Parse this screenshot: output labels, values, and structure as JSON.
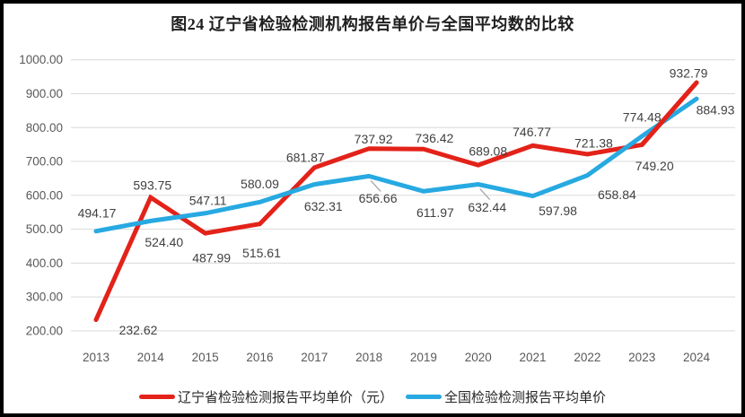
{
  "title": "图24 辽宁省检验检测机构报告单价与全国平均数的比较",
  "colors": {
    "liaoning_red": "#E32219",
    "national_blue": "#27A9E1",
    "gridline": "#D9D9D9",
    "axis_text": "#595959",
    "data_label_text": "#404040",
    "leader_line": "#A6A6A6",
    "frame_border": "#000000",
    "title_text": "#1F1F1F"
  },
  "legend": {
    "items": [
      {
        "label": "辽宁省检验检测报告平均单价（元）",
        "color": "#E32219"
      },
      {
        "label": "全国检验检测报告平均单价",
        "color": "#27A9E1"
      }
    ]
  },
  "chart_data": {
    "type": "line",
    "title": "图24 辽宁省检验检测机构报告单价与全国平均数的比较",
    "categories": [
      "2013",
      "2014",
      "2015",
      "2016",
      "2017",
      "2018",
      "2019",
      "2020",
      "2021",
      "2022",
      "2023",
      "2024"
    ],
    "series": [
      {
        "name": "辽宁省检验检测报告平均单价（元）",
        "color": "#E32219",
        "values": [
          232.62,
          593.75,
          487.99,
          515.61,
          681.87,
          737.92,
          736.42,
          689.08,
          746.77,
          721.38,
          749.2,
          932.79
        ],
        "label_offsets": [
          [
            47,
            12
          ],
          [
            2,
            -13
          ],
          [
            7,
            28
          ],
          [
            2,
            33
          ],
          [
            -10,
            -11
          ],
          [
            5,
            -10
          ],
          [
            12,
            -12
          ],
          [
            11,
            -15
          ],
          [
            -1,
            -15
          ],
          [
            7,
            -12
          ],
          [
            14,
            24
          ],
          [
            -9,
            -10
          ]
        ],
        "leader_line_points": [],
        "redraw_last_segment_on_top": true
      },
      {
        "name": "全国检验检测报告平均单价",
        "color": "#27A9E1",
        "values": [
          494.17,
          524.4,
          547.11,
          580.09,
          632.31,
          656.66,
          611.97,
          632.44,
          597.98,
          658.84,
          774.48,
          884.93
        ],
        "label_offsets": [
          [
            1,
            -20
          ],
          [
            15,
            24
          ],
          [
            3,
            -14
          ],
          [
            0,
            -20
          ],
          [
            10,
            25
          ],
          [
            10,
            25
          ],
          [
            13,
            24
          ],
          [
            10,
            26
          ],
          [
            28,
            17
          ],
          [
            33,
            22
          ],
          [
            0,
            -21
          ],
          [
            21,
            13
          ]
        ],
        "leader_line_points": [
          5,
          7
        ],
        "redraw_last_segment_on_top": false
      }
    ],
    "xlabel": "",
    "ylabel": "",
    "ylim": [
      200,
      1000
    ],
    "ytick_step": 100,
    "ytick_decimals": 2,
    "grid": true,
    "legend_position": "bottom",
    "line_width": 5
  }
}
